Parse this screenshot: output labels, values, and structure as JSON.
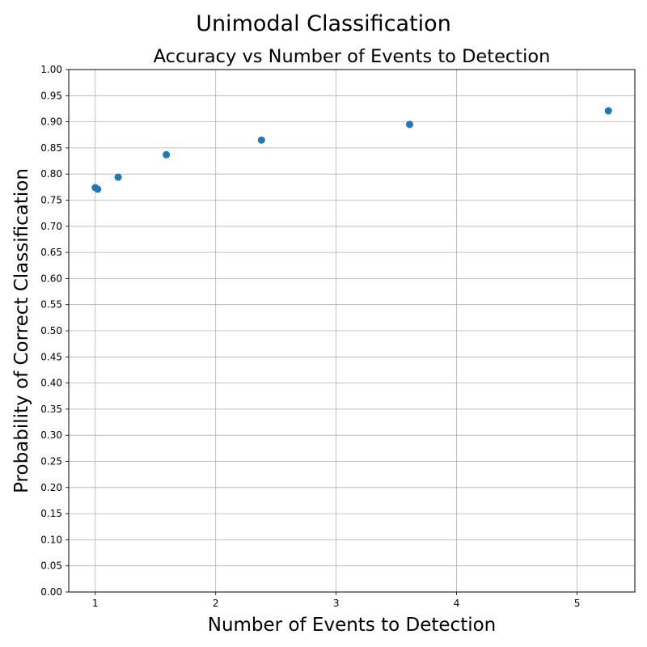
{
  "figure_title": "Unimodal Classification",
  "chart_data": {
    "type": "scatter",
    "title": "Accuracy vs Number of Events to Detection",
    "xlabel": "Number of Events to Detection",
    "ylabel": "Probability of Correct Classification",
    "xlim": [
      0.78,
      5.48
    ],
    "ylim": [
      0.0,
      1.0
    ],
    "x_ticks": [
      1,
      2,
      3,
      4,
      5
    ],
    "y_ticks": [
      0.0,
      0.05,
      0.1,
      0.15,
      0.2,
      0.25,
      0.3,
      0.35,
      0.4,
      0.45,
      0.5,
      0.55,
      0.6,
      0.65,
      0.7,
      0.75,
      0.8,
      0.85,
      0.9,
      0.95,
      1.0
    ],
    "y_tick_labels": [
      "0.00",
      "0.05",
      "0.10",
      "0.15",
      "0.20",
      "0.25",
      "0.30",
      "0.35",
      "0.40",
      "0.45",
      "0.50",
      "0.55",
      "0.60",
      "0.65",
      "0.70",
      "0.75",
      "0.80",
      "0.85",
      "0.90",
      "0.95",
      "1.00"
    ],
    "grid": true,
    "legend": "none",
    "marker_color": "#1f77b4",
    "points": [
      {
        "x": 1.0,
        "y": 0.774
      },
      {
        "x": 1.02,
        "y": 0.771
      },
      {
        "x": 1.19,
        "y": 0.794
      },
      {
        "x": 1.59,
        "y": 0.837
      },
      {
        "x": 2.38,
        "y": 0.865
      },
      {
        "x": 3.61,
        "y": 0.895
      },
      {
        "x": 5.26,
        "y": 0.921
      }
    ]
  }
}
